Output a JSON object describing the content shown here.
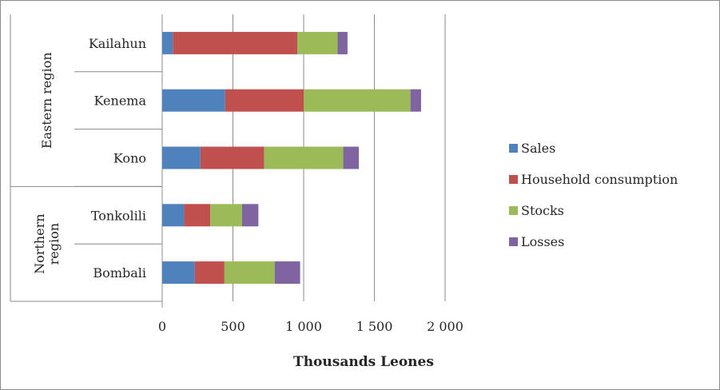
{
  "chart_data": {
    "type": "bar",
    "orientation": "horizontal",
    "stacked": true,
    "title": "",
    "xlabel": "Thousands Leones",
    "ylabel": "",
    "xlim": [
      0,
      2000
    ],
    "x_ticks": [
      0,
      500,
      1000,
      1500,
      2000
    ],
    "x_tick_labels": [
      "0",
      "500",
      "1 000",
      "1 500",
      "2 000"
    ],
    "grid": "vertical",
    "legend_position": "right",
    "groups": [
      {
        "name": "Eastern region",
        "categories": [
          "Kailahun",
          "Kenema",
          "Kono"
        ]
      },
      {
        "name": "Northern region",
        "categories": [
          "Tonkolili",
          "Bombali"
        ]
      }
    ],
    "categories": [
      "Kailahun",
      "Kenema",
      "Kono",
      "Tonkolili",
      "Bombali"
    ],
    "series": [
      {
        "name": "Sales",
        "color": "#4f81bd",
        "values": [
          75,
          445,
          270,
          155,
          230
        ]
      },
      {
        "name": "Household consumption",
        "color": "#c0504d",
        "values": [
          880,
          555,
          450,
          185,
          210
        ]
      },
      {
        "name": "Stocks",
        "color": "#9bbb59",
        "values": [
          285,
          755,
          560,
          225,
          355
        ]
      },
      {
        "name": "Losses",
        "color": "#8064a2",
        "values": [
          70,
          75,
          110,
          115,
          180
        ]
      }
    ]
  }
}
